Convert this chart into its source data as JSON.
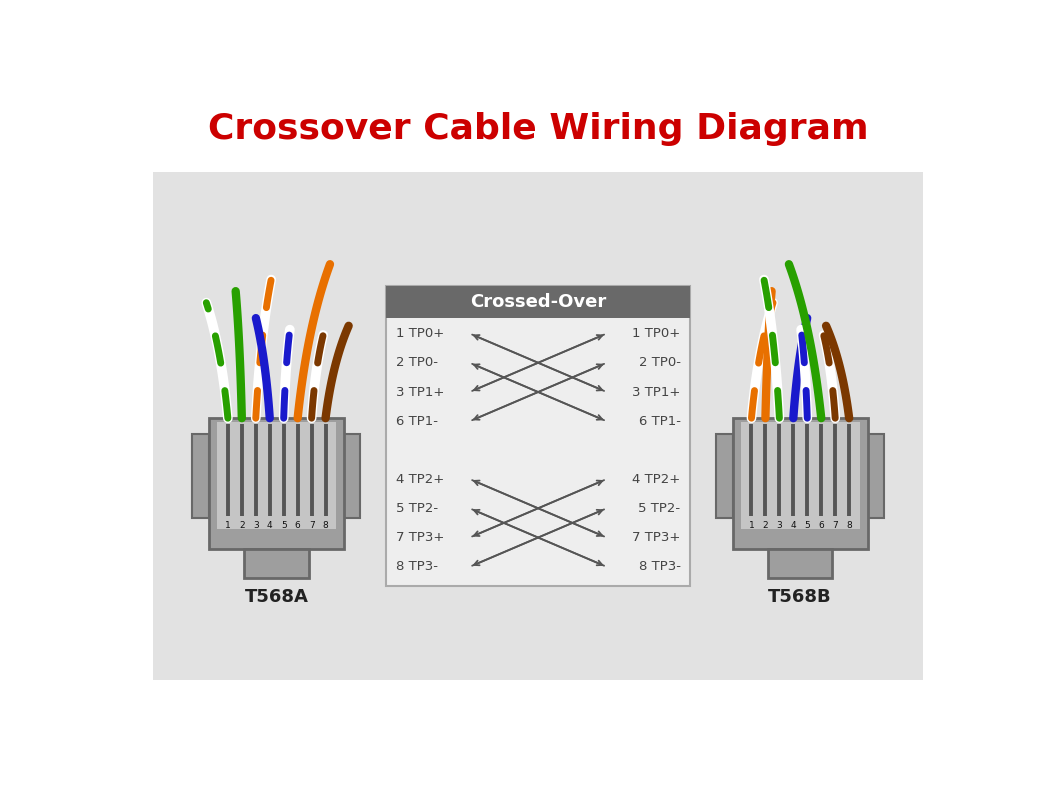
{
  "title": "Crossover Cable Wiring Diagram",
  "title_color": "#cc0000",
  "title_fontsize": 26,
  "bg_color": "#e2e2e2",
  "white_bg": "#ffffff",
  "box_header_color": "#696969",
  "box_bg_color": "#eeeeee",
  "box_title": "Crossed-Over",
  "left_label": "T568A",
  "right_label": "T568B",
  "solid_A": [
    "#28a000",
    "#28a000",
    "#e87000",
    "#1a1acc",
    "#1a1acc",
    "#e87000",
    "#7b3800",
    "#7b3800"
  ],
  "stripe_A": [
    true,
    false,
    true,
    false,
    true,
    false,
    true,
    false
  ],
  "solid_B": [
    "#e87000",
    "#e87000",
    "#28a000",
    "#1a1acc",
    "#1a1acc",
    "#28a000",
    "#7b3800",
    "#7b3800"
  ],
  "stripe_B": [
    true,
    false,
    true,
    false,
    true,
    false,
    true,
    false
  ],
  "crossover_labels_left": [
    "1 TP0+",
    "2 TP0-",
    "3 TP1+",
    "6 TP1-",
    "4 TP2+",
    "5 TP2-",
    "7 TP3+",
    "8 TP3-"
  ],
  "crossover_labels_right": [
    "1 TP0+",
    "2 TP0-",
    "3 TP1+",
    "6 TP1-",
    "4 TP2+",
    "5 TP2-",
    "7 TP3+",
    "8 TP3-"
  ]
}
